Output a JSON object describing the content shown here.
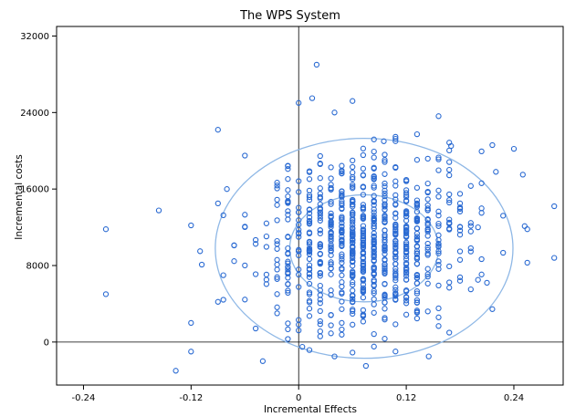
{
  "chart_data": {
    "type": "scatter",
    "title": "The WPS System",
    "xlabel": "Incremental Effects",
    "ylabel": "Incremental costs",
    "xlim": [
      -0.27,
      0.295
    ],
    "ylim": [
      -4500,
      33000
    ],
    "xticks": [
      -0.24,
      -0.12,
      0,
      0.12,
      0.24
    ],
    "xtick_labels": [
      "-0.24",
      "-0.12",
      "0",
      "0.12",
      "0.24"
    ],
    "yticks": [
      0,
      8000,
      16000,
      24000,
      32000
    ],
    "ytick_labels": [
      "0",
      "8000",
      "16000",
      "24000",
      "32000"
    ],
    "reference_lines": {
      "x": 0,
      "y": 0
    },
    "grid": false,
    "legend": "none",
    "point_color": "#2a6ad2",
    "ellipse_color": "#8fb8e6",
    "ellipses": [
      {
        "cx": 0.073,
        "cy": 9800,
        "rx": 0.166,
        "ry": 11500
      },
      {
        "cx": 0.073,
        "cy": 9800,
        "rx": 0.083,
        "ry": 5600
      }
    ],
    "points": [
      [
        -0.215,
        11800
      ],
      [
        -0.215,
        5000
      ],
      [
        -0.137,
        -3000
      ],
      [
        -0.12,
        -1000
      ],
      [
        -0.12,
        2000
      ],
      [
        -0.09,
        22200
      ],
      [
        -0.06,
        19500
      ],
      [
        -0.04,
        -2000
      ],
      [
        0.02,
        29000
      ],
      [
        0.015,
        25500
      ],
      [
        0.06,
        25200
      ],
      [
        0.04,
        24000
      ],
      [
        0.095,
        21000
      ],
      [
        0.17,
        20500
      ],
      [
        0.24,
        20200
      ],
      [
        0.285,
        14200
      ],
      [
        0.285,
        8800
      ],
      [
        0.255,
        11800
      ],
      [
        0.255,
        8300
      ],
      [
        0.21,
        6200
      ],
      [
        0.22,
        17800
      ],
      [
        0.25,
        17500
      ],
      [
        0.145,
        -1500
      ],
      [
        0.075,
        -2500
      ],
      [
        -0.12,
        12200
      ],
      [
        -0.11,
        9500
      ],
      [
        -0.09,
        14500
      ],
      [
        -0.09,
        4200
      ],
      [
        -0.08,
        16000
      ],
      [
        0.2,
        6500
      ],
      [
        0.18,
        14500
      ],
      [
        0.0,
        25000
      ],
      [
        0.004,
        -500
      ],
      [
        0.04,
        -1500
      ],
      [
        0.2,
        12000
      ]
    ]
  }
}
